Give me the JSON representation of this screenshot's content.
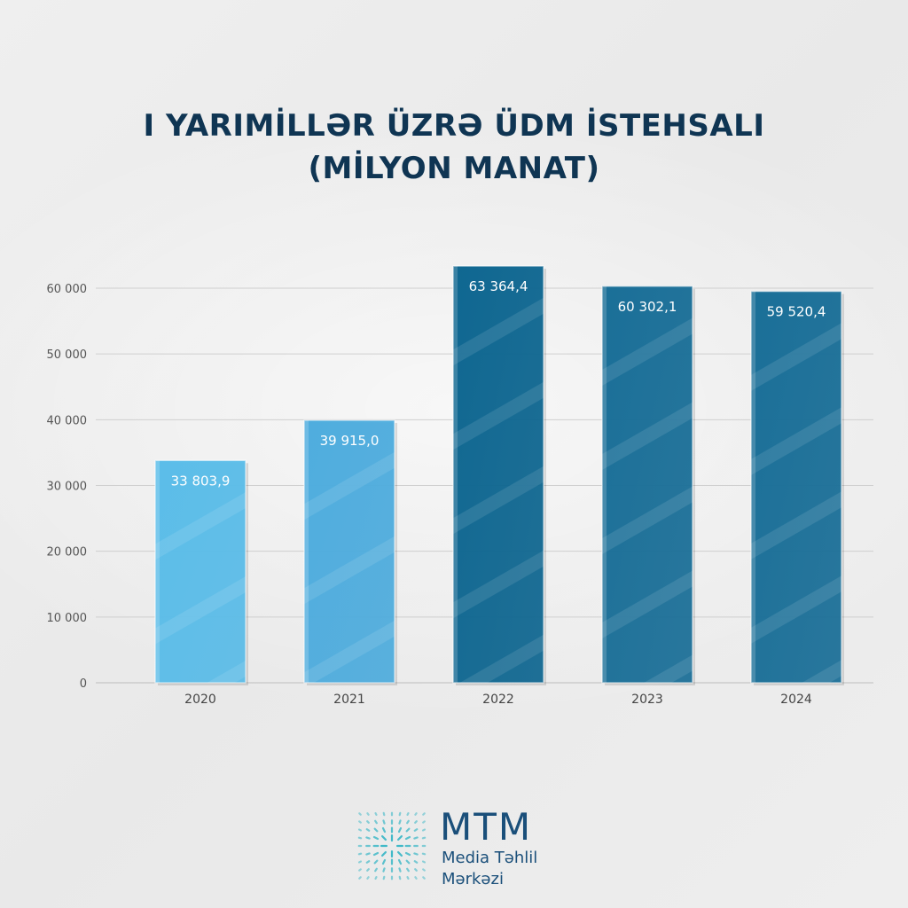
{
  "title_line1": "I YARIMİLLƏR ÜZRƏ ÜDM İSTEHSALI",
  "title_line2": "(MİLYON MANAT)",
  "chart_data": {
    "type": "bar",
    "title": "I YARIMİLLƏR ÜZRƏ ÜDM İSTEHSALI (MİLYON MANAT)",
    "categories": [
      "2020",
      "2021",
      "2022",
      "2023",
      "2024"
    ],
    "values": [
      33803.9,
      39915.0,
      63364.4,
      60302.1,
      59520.4
    ],
    "data_labels": [
      "33 803,9",
      "39 915,0",
      "63 364,4",
      "60 302,1",
      "59 520,4"
    ],
    "y_ticks": [
      0,
      10000,
      20000,
      30000,
      40000,
      50000,
      60000
    ],
    "y_tick_labels": [
      "0",
      "10 000",
      "20 000",
      "30 000",
      "40 000",
      "50 000",
      "60 000"
    ],
    "ylim": [
      0,
      60000
    ],
    "grid": true,
    "bar_colors": [
      "#5bbde9",
      "#4fadde",
      "#0f6791",
      "#1a6f98",
      "#1a6f98"
    ]
  },
  "logo": {
    "name": "MTM",
    "line1": "Media Təhlil",
    "line2": "Mərkəzi"
  },
  "colors": {
    "title": "#0f3553",
    "logo": "#1a4f7a",
    "logo_mark": "#2bb3c4"
  }
}
